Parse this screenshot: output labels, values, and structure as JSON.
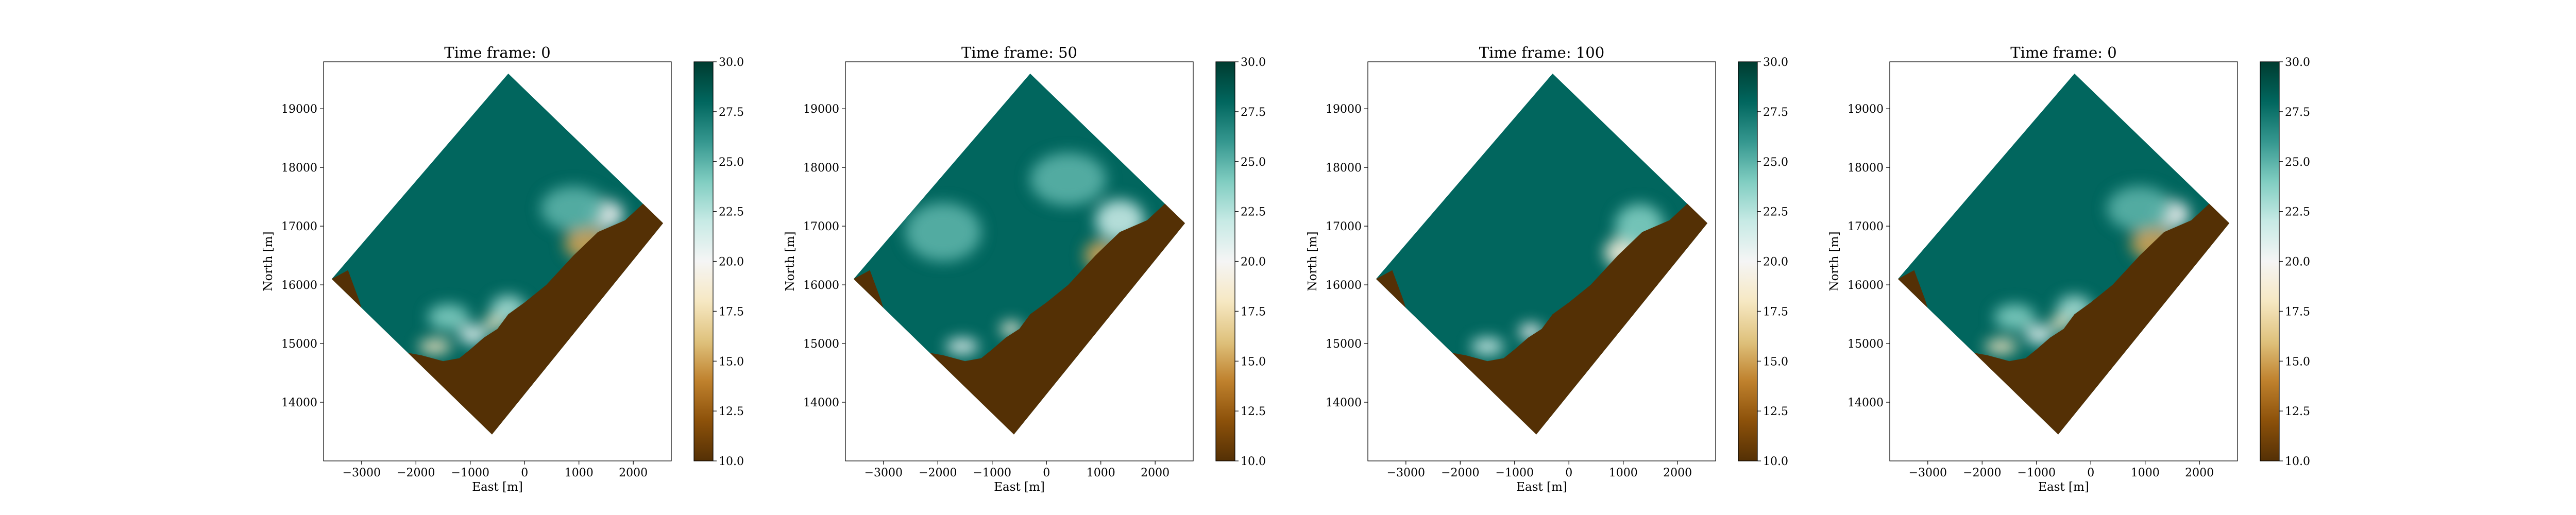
{
  "figure": {
    "colormap": "BrBG",
    "colormap_stops": [
      "#543005",
      "#8c510a",
      "#bf812d",
      "#dfc27d",
      "#f6e8c3",
      "#f5f5f5",
      "#c7eae5",
      "#80cdc1",
      "#35978f",
      "#01665e",
      "#003c30"
    ]
  },
  "chart_data": [
    {
      "type": "heatmap",
      "title": "Time frame: 0",
      "xlabel": "East [m]",
      "ylabel": "North [m]",
      "xlim": [
        -3700,
        2700
      ],
      "ylim": [
        13000,
        19800
      ],
      "xticks": [
        -3000,
        -2000,
        -1000,
        0,
        1000,
        2000
      ],
      "xtick_labels": [
        "−3000",
        "−2000",
        "−1000",
        "0",
        "1000",
        "2000"
      ],
      "yticks": [
        14000,
        15000,
        16000,
        17000,
        18000,
        19000
      ],
      "ytick_labels": [
        "14000",
        "15000",
        "16000",
        "17000",
        "18000",
        "19000"
      ],
      "domain_corners": [
        [
          -300,
          19600
        ],
        [
          2550,
          17050
        ],
        [
          -600,
          13450
        ],
        [
          -3550,
          16100
        ]
      ],
      "land_polygons": [
        [
          [
            -3550,
            16100
          ],
          [
            -3250,
            16250
          ],
          [
            -3050,
            15750
          ],
          [
            -2900,
            15300
          ],
          [
            -2550,
            15050
          ],
          [
            -2200,
            14850
          ],
          [
            -1900,
            14800
          ],
          [
            -1500,
            14700
          ],
          [
            -1200,
            14750
          ],
          [
            -1000,
            14900
          ],
          [
            -750,
            15100
          ],
          [
            -500,
            15250
          ],
          [
            -300,
            15500
          ],
          [
            0,
            15700
          ],
          [
            400,
            16000
          ],
          [
            900,
            16500
          ],
          [
            1350,
            16900
          ],
          [
            1850,
            17100
          ],
          [
            2200,
            17400
          ],
          [
            2550,
            17050
          ],
          [
            -600,
            13450
          ]
        ]
      ],
      "warm_patches": [
        {
          "x": 1150,
          "y": 16700,
          "rx": 420,
          "ry": 280,
          "value": 15
        },
        {
          "x": 1500,
          "y": 17200,
          "rx": 320,
          "ry": 240,
          "value": 20
        },
        {
          "x": -550,
          "y": 15350,
          "rx": 200,
          "ry": 130,
          "value": 18
        },
        {
          "x": -950,
          "y": 15150,
          "rx": 260,
          "ry": 170,
          "value": 21
        },
        {
          "x": -1650,
          "y": 14950,
          "rx": 300,
          "ry": 130,
          "value": 18
        },
        {
          "x": -300,
          "y": 15600,
          "rx": 320,
          "ry": 220,
          "value": 23
        },
        {
          "x": -1400,
          "y": 15450,
          "rx": 380,
          "ry": 220,
          "value": 24
        },
        {
          "x": 900,
          "y": 17300,
          "rx": 600,
          "ry": 380,
          "value": 25
        }
      ],
      "colorbar": {
        "min": 10,
        "max": 30,
        "ticks": [
          10,
          12.5,
          15,
          17.5,
          20,
          22.5,
          25,
          27.5,
          30
        ],
        "tick_labels": [
          "10.0",
          "12.5",
          "15.0",
          "17.5",
          "20.0",
          "22.5",
          "25.0",
          "27.5",
          "30.0"
        ]
      }
    },
    {
      "type": "heatmap",
      "title": "Time frame: 50",
      "xlabel": "East [m]",
      "ylabel": "North [m]",
      "xlim": [
        -3700,
        2700
      ],
      "ylim": [
        13000,
        19800
      ],
      "xticks": [
        -3000,
        -2000,
        -1000,
        0,
        1000,
        2000
      ],
      "xtick_labels": [
        "−3000",
        "−2000",
        "−1000",
        "0",
        "1000",
        "2000"
      ],
      "yticks": [
        14000,
        15000,
        16000,
        17000,
        18000,
        19000
      ],
      "ytick_labels": [
        "14000",
        "15000",
        "16000",
        "17000",
        "18000",
        "19000"
      ],
      "domain_corners": [
        [
          -300,
          19600
        ],
        [
          2550,
          17050
        ],
        [
          -600,
          13450
        ],
        [
          -3550,
          16100
        ]
      ],
      "land_polygons": [
        [
          [
            -3550,
            16100
          ],
          [
            -3250,
            16250
          ],
          [
            -3050,
            15750
          ],
          [
            -2900,
            15300
          ],
          [
            -2550,
            15050
          ],
          [
            -2200,
            14850
          ],
          [
            -1900,
            14800
          ],
          [
            -1500,
            14700
          ],
          [
            -1200,
            14750
          ],
          [
            -1000,
            14900
          ],
          [
            -750,
            15100
          ],
          [
            -500,
            15250
          ],
          [
            -300,
            15500
          ],
          [
            0,
            15700
          ],
          [
            400,
            16000
          ],
          [
            900,
            16500
          ],
          [
            1350,
            16900
          ],
          [
            1850,
            17100
          ],
          [
            2200,
            17400
          ],
          [
            2550,
            17050
          ],
          [
            -600,
            13450
          ]
        ]
      ],
      "warm_patches": [
        {
          "x": 1000,
          "y": 16500,
          "rx": 300,
          "ry": 260,
          "value": 15
        },
        {
          "x": 1350,
          "y": 17100,
          "rx": 450,
          "ry": 350,
          "value": 22
        },
        {
          "x": -650,
          "y": 15250,
          "rx": 200,
          "ry": 130,
          "value": 19
        },
        {
          "x": -1550,
          "y": 14950,
          "rx": 300,
          "ry": 140,
          "value": 21
        },
        {
          "x": -1900,
          "y": 16900,
          "rx": 700,
          "ry": 500,
          "value": 25
        },
        {
          "x": 400,
          "y": 17800,
          "rx": 700,
          "ry": 450,
          "value": 25
        }
      ],
      "colorbar": {
        "min": 10,
        "max": 30,
        "ticks": [
          10,
          12.5,
          15,
          17.5,
          20,
          22.5,
          25,
          27.5,
          30
        ],
        "tick_labels": [
          "10.0",
          "12.5",
          "15.0",
          "17.5",
          "20.0",
          "22.5",
          "25.0",
          "27.5",
          "30.0"
        ]
      }
    },
    {
      "type": "heatmap",
      "title": "Time frame: 100",
      "xlabel": "East [m]",
      "ylabel": "North [m]",
      "xlim": [
        -3700,
        2700
      ],
      "ylim": [
        13000,
        19800
      ],
      "xticks": [
        -3000,
        -2000,
        -1000,
        0,
        1000,
        2000
      ],
      "xtick_labels": [
        "−3000",
        "−2000",
        "−1000",
        "0",
        "1000",
        "2000"
      ],
      "yticks": [
        14000,
        15000,
        16000,
        17000,
        18000,
        19000
      ],
      "ytick_labels": [
        "14000",
        "15000",
        "16000",
        "17000",
        "18000",
        "19000"
      ],
      "domain_corners": [
        [
          -300,
          19600
        ],
        [
          2550,
          17050
        ],
        [
          -600,
          13450
        ],
        [
          -3550,
          16100
        ]
      ],
      "land_polygons": [
        [
          [
            -3550,
            16100
          ],
          [
            -3250,
            16250
          ],
          [
            -3050,
            15750
          ],
          [
            -2900,
            15300
          ],
          [
            -2550,
            15050
          ],
          [
            -2200,
            14850
          ],
          [
            -1900,
            14800
          ],
          [
            -1500,
            14700
          ],
          [
            -1200,
            14750
          ],
          [
            -1000,
            14900
          ],
          [
            -750,
            15100
          ],
          [
            -500,
            15250
          ],
          [
            -300,
            15500
          ],
          [
            0,
            15700
          ],
          [
            400,
            16000
          ],
          [
            900,
            16500
          ],
          [
            1350,
            16900
          ],
          [
            1850,
            17100
          ],
          [
            2200,
            17400
          ],
          [
            2550,
            17050
          ],
          [
            -600,
            13450
          ]
        ]
      ],
      "warm_patches": [
        {
          "x": 1000,
          "y": 16550,
          "rx": 350,
          "ry": 260,
          "value": 19
        },
        {
          "x": 1300,
          "y": 17000,
          "rx": 450,
          "ry": 380,
          "value": 24
        },
        {
          "x": -700,
          "y": 15200,
          "rx": 220,
          "ry": 140,
          "value": 20
        },
        {
          "x": -1500,
          "y": 14950,
          "rx": 300,
          "ry": 150,
          "value": 22
        }
      ],
      "colorbar": {
        "min": 10,
        "max": 30,
        "ticks": [
          10,
          12.5,
          15,
          17.5,
          20,
          22.5,
          25,
          27.5,
          30
        ],
        "tick_labels": [
          "10.0",
          "12.5",
          "15.0",
          "17.5",
          "20.0",
          "22.5",
          "25.0",
          "27.5",
          "30.0"
        ]
      }
    },
    {
      "type": "heatmap",
      "title": "Time frame: 0",
      "xlabel": "East [m]",
      "ylabel": "North [m]",
      "xlim": [
        -3700,
        2700
      ],
      "ylim": [
        13000,
        19800
      ],
      "xticks": [
        -3000,
        -2000,
        -1000,
        0,
        1000,
        2000
      ],
      "xtick_labels": [
        "−3000",
        "−2000",
        "−1000",
        "0",
        "1000",
        "2000"
      ],
      "yticks": [
        14000,
        15000,
        16000,
        17000,
        18000,
        19000
      ],
      "ytick_labels": [
        "14000",
        "15000",
        "16000",
        "17000",
        "18000",
        "19000"
      ],
      "domain_corners": [
        [
          -300,
          19600
        ],
        [
          2550,
          17050
        ],
        [
          -600,
          13450
        ],
        [
          -3550,
          16100
        ]
      ],
      "land_polygons": [
        [
          [
            -3550,
            16100
          ],
          [
            -3250,
            16250
          ],
          [
            -3050,
            15750
          ],
          [
            -2900,
            15300
          ],
          [
            -2550,
            15050
          ],
          [
            -2200,
            14850
          ],
          [
            -1900,
            14800
          ],
          [
            -1500,
            14700
          ],
          [
            -1200,
            14750
          ],
          [
            -1000,
            14900
          ],
          [
            -750,
            15100
          ],
          [
            -500,
            15250
          ],
          [
            -300,
            15500
          ],
          [
            0,
            15700
          ],
          [
            400,
            16000
          ],
          [
            900,
            16500
          ],
          [
            1350,
            16900
          ],
          [
            1850,
            17100
          ],
          [
            2200,
            17400
          ],
          [
            2550,
            17050
          ],
          [
            -600,
            13450
          ]
        ]
      ],
      "warm_patches": [
        {
          "x": 1150,
          "y": 16700,
          "rx": 420,
          "ry": 280,
          "value": 15
        },
        {
          "x": 1500,
          "y": 17200,
          "rx": 320,
          "ry": 240,
          "value": 20
        },
        {
          "x": -550,
          "y": 15350,
          "rx": 200,
          "ry": 130,
          "value": 18
        },
        {
          "x": -950,
          "y": 15150,
          "rx": 260,
          "ry": 170,
          "value": 21
        },
        {
          "x": -1650,
          "y": 14950,
          "rx": 300,
          "ry": 130,
          "value": 18
        },
        {
          "x": -300,
          "y": 15600,
          "rx": 320,
          "ry": 220,
          "value": 23
        },
        {
          "x": -1400,
          "y": 15450,
          "rx": 380,
          "ry": 220,
          "value": 24
        },
        {
          "x": 900,
          "y": 17300,
          "rx": 600,
          "ry": 380,
          "value": 25
        }
      ],
      "colorbar": {
        "min": 10,
        "max": 30,
        "ticks": [
          10,
          12.5,
          15,
          17.5,
          20,
          22.5,
          25,
          27.5,
          30
        ],
        "tick_labels": [
          "10.0",
          "12.5",
          "15.0",
          "17.5",
          "20.0",
          "22.5",
          "25.0",
          "27.5",
          "30.0"
        ]
      }
    }
  ]
}
